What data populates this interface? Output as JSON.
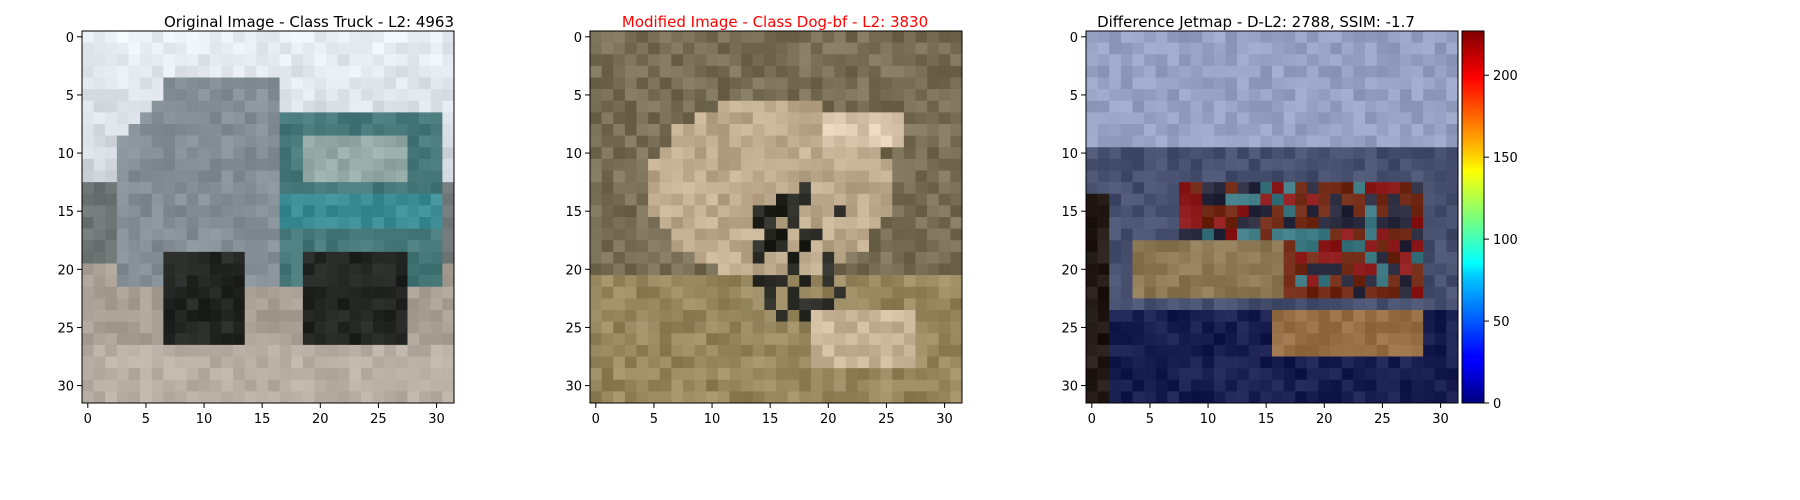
{
  "chart_data": [
    {
      "type": "heatmap",
      "title": "Original Image - Class Truck - L2: 4963",
      "title_color": "#000000",
      "xlim": [
        -0.5,
        31.5
      ],
      "ylim": [
        31.5,
        -0.5
      ],
      "xticks": [
        "0",
        "5",
        "10",
        "15",
        "20",
        "25",
        "30"
      ],
      "yticks": [
        "0",
        "5",
        "10",
        "15",
        "20",
        "25",
        "30"
      ],
      "grid": false,
      "content": "32x32 pixel image of a grey and teal truck on a road under a pale sky"
    },
    {
      "type": "heatmap",
      "title": "Modified Image - Class Dog-bf - L2: 3830",
      "title_color": "#ff0000",
      "xlim": [
        -0.5,
        31.5
      ],
      "ylim": [
        31.5,
        -0.5
      ],
      "xticks": [
        "0",
        "5",
        "10",
        "15",
        "20",
        "25",
        "30"
      ],
      "yticks": [
        "0",
        "5",
        "10",
        "15",
        "20",
        "25",
        "30"
      ],
      "grid": false,
      "content": "32x32 pixel image of a tan and grey dog over olive-brown background"
    },
    {
      "type": "heatmap",
      "title": "Difference Jetmap - D-L2: 2788, SSIM: -1.7",
      "title_color": "#000000",
      "xlim": [
        -0.5,
        31.5
      ],
      "ylim": [
        31.5,
        -0.5
      ],
      "xticks": [
        "0",
        "5",
        "10",
        "15",
        "20",
        "25",
        "30"
      ],
      "yticks": [
        "0",
        "5",
        "10",
        "15",
        "20",
        "25",
        "30"
      ],
      "grid": false,
      "colorbar": {
        "colormap": "jet",
        "range": [
          0,
          227
        ],
        "ticks": [
          "0",
          "50",
          "100",
          "150",
          "200"
        ],
        "tick_values": [
          0,
          50,
          100,
          150,
          200
        ]
      }
    }
  ]
}
